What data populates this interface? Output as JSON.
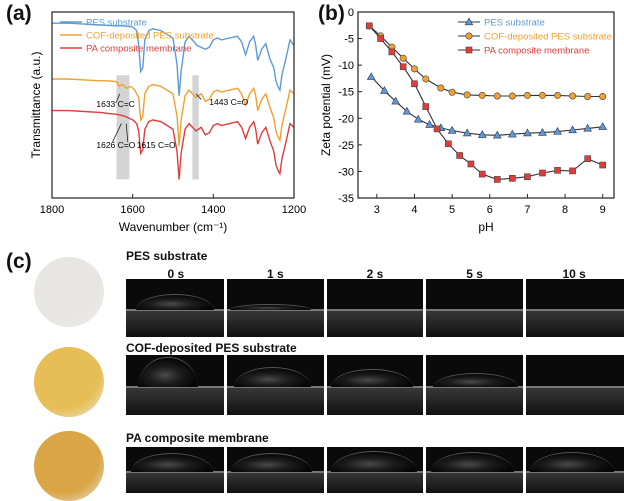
{
  "panels": {
    "a": "(a)",
    "b": "(b)",
    "c": "(c)"
  },
  "chart_data": [
    {
      "type": "line",
      "panel": "(a)",
      "xlabel": "Wavenumber (cm⁻¹)",
      "ylabel": "Transmittance (a.u.)",
      "xlim": [
        1800,
        1200
      ],
      "x_reversed": true,
      "xticks": [
        1800,
        1600,
        1400,
        1200
      ],
      "legend_position": "top-left",
      "series": [
        {
          "name": "PES substrate",
          "color": "#5b9bd5",
          "x": [
            1800,
            1760,
            1720,
            1680,
            1640,
            1620,
            1600,
            1590,
            1585,
            1580,
            1575,
            1570,
            1560,
            1550,
            1530,
            1500,
            1490,
            1485,
            1480,
            1470,
            1460,
            1440,
            1420,
            1410,
            1400,
            1390,
            1380,
            1360,
            1340,
            1330,
            1320,
            1310,
            1300,
            1295,
            1290,
            1280,
            1270,
            1260,
            1250,
            1245,
            1240,
            1235,
            1230,
            1220,
            1210,
            1200
          ],
          "y": [
            0.94,
            0.94,
            0.935,
            0.93,
            0.925,
            0.925,
            0.92,
            0.9,
            0.82,
            0.68,
            0.7,
            0.85,
            0.9,
            0.91,
            0.9,
            0.86,
            0.72,
            0.55,
            0.68,
            0.84,
            0.87,
            0.82,
            0.8,
            0.81,
            0.85,
            0.86,
            0.85,
            0.86,
            0.87,
            0.84,
            0.77,
            0.84,
            0.87,
            0.82,
            0.74,
            0.8,
            0.83,
            0.75,
            0.7,
            0.63,
            0.6,
            0.58,
            0.66,
            0.75,
            0.85,
            0.82
          ]
        },
        {
          "name": "COF-deposited PES substrate",
          "color": "#f0a030",
          "x": [
            1800,
            1760,
            1720,
            1680,
            1660,
            1640,
            1633,
            1626,
            1620,
            1615,
            1605,
            1595,
            1585,
            1580,
            1575,
            1570,
            1560,
            1550,
            1530,
            1500,
            1490,
            1485,
            1480,
            1470,
            1460,
            1443,
            1430,
            1420,
            1410,
            1400,
            1390,
            1380,
            1360,
            1340,
            1330,
            1320,
            1310,
            1300,
            1295,
            1290,
            1280,
            1270,
            1260,
            1250,
            1245,
            1240,
            1235,
            1230,
            1220,
            1210,
            1200
          ],
          "y": [
            0.64,
            0.64,
            0.635,
            0.63,
            0.63,
            0.625,
            0.6,
            0.61,
            0.6,
            0.59,
            0.6,
            0.58,
            0.54,
            0.42,
            0.44,
            0.56,
            0.6,
            0.61,
            0.6,
            0.56,
            0.44,
            0.28,
            0.42,
            0.55,
            0.58,
            0.54,
            0.56,
            0.52,
            0.53,
            0.57,
            0.58,
            0.57,
            0.58,
            0.59,
            0.56,
            0.5,
            0.56,
            0.59,
            0.55,
            0.47,
            0.53,
            0.56,
            0.49,
            0.43,
            0.36,
            0.33,
            0.31,
            0.39,
            0.48,
            0.58,
            0.56
          ]
        },
        {
          "name": "PA composite membrane",
          "color": "#e03c3c",
          "x": [
            1800,
            1760,
            1720,
            1680,
            1660,
            1640,
            1630,
            1620,
            1610,
            1600,
            1590,
            1585,
            1580,
            1575,
            1570,
            1560,
            1550,
            1530,
            1500,
            1490,
            1485,
            1480,
            1470,
            1460,
            1443,
            1430,
            1420,
            1410,
            1400,
            1390,
            1380,
            1360,
            1340,
            1330,
            1320,
            1310,
            1300,
            1295,
            1290,
            1280,
            1270,
            1260,
            1250,
            1245,
            1240,
            1235,
            1230,
            1220,
            1210,
            1200
          ],
          "y": [
            0.47,
            0.47,
            0.465,
            0.46,
            0.455,
            0.45,
            0.445,
            0.44,
            0.43,
            0.42,
            0.4,
            0.36,
            0.24,
            0.26,
            0.37,
            0.41,
            0.42,
            0.41,
            0.37,
            0.25,
            0.1,
            0.24,
            0.37,
            0.4,
            0.36,
            0.38,
            0.34,
            0.35,
            0.39,
            0.4,
            0.39,
            0.4,
            0.41,
            0.38,
            0.32,
            0.38,
            0.41,
            0.37,
            0.29,
            0.35,
            0.38,
            0.31,
            0.25,
            0.18,
            0.15,
            0.13,
            0.21,
            0.3,
            0.4,
            0.38
          ]
        }
      ],
      "highlight_bands": [
        {
          "x_from": 1640,
          "x_to": 1608
        },
        {
          "x_from": 1452,
          "x_to": 1436
        }
      ],
      "annotations": [
        {
          "text": "1633 C=C",
          "x": 1690,
          "y": 0.49
        },
        {
          "text": "1626 C=O",
          "x": 1690,
          "y": 0.27
        },
        {
          "text": "1615 C=O",
          "x": 1590,
          "y": 0.27
        },
        {
          "text": "1443 C=O",
          "x": 1410,
          "y": 0.5
        }
      ]
    },
    {
      "type": "line",
      "panel": "(b)",
      "xlabel": "pH",
      "ylabel": "Zeta potential (mV)",
      "xlim": [
        2.5,
        9.3
      ],
      "ylim": [
        -35,
        0
      ],
      "xticks": [
        3,
        4,
        5,
        6,
        7,
        8,
        9
      ],
      "yticks": [
        0,
        -5,
        -10,
        -15,
        -20,
        -25,
        -30,
        -35
      ],
      "legend_position": "top-right",
      "series": [
        {
          "name": "PES substrate",
          "color": "#5b9bd5",
          "marker": "triangle",
          "x": [
            2.85,
            3.2,
            3.5,
            3.8,
            4.1,
            4.4,
            4.7,
            5.0,
            5.4,
            5.8,
            6.2,
            6.6,
            7.0,
            7.4,
            7.8,
            8.2,
            8.6,
            9.0
          ],
          "y": [
            -12.2,
            -14.8,
            -16.8,
            -18.7,
            -20.2,
            -21.2,
            -21.8,
            -22.3,
            -22.8,
            -23.1,
            -23.2,
            -23.0,
            -22.8,
            -22.7,
            -22.5,
            -22.2,
            -21.9,
            -21.6
          ]
        },
        {
          "name": "COF-deposited PES substrate",
          "color": "#f0a030",
          "marker": "circle",
          "x": [
            2.8,
            3.1,
            3.4,
            3.7,
            4.0,
            4.3,
            4.7,
            5.0,
            5.4,
            5.8,
            6.2,
            6.6,
            7.0,
            7.4,
            7.8,
            8.2,
            8.6,
            9.0
          ],
          "y": [
            -2.6,
            -4.5,
            -6.6,
            -8.7,
            -10.7,
            -12.6,
            -14.3,
            -15.1,
            -15.6,
            -15.7,
            -15.8,
            -15.8,
            -15.7,
            -15.7,
            -15.7,
            -15.8,
            -15.9,
            -15.9
          ]
        },
        {
          "name": "PA composite membrane",
          "color": "#e03c3c",
          "marker": "square",
          "x": [
            2.8,
            3.1,
            3.4,
            3.7,
            4.0,
            4.3,
            4.6,
            4.9,
            5.2,
            5.5,
            5.8,
            6.2,
            6.6,
            7.0,
            7.4,
            7.8,
            8.2,
            8.6,
            9.0
          ],
          "y": [
            -2.6,
            -5.0,
            -7.5,
            -10.3,
            -13.5,
            -17.8,
            -22.0,
            -24.8,
            -27.0,
            -28.6,
            -30.5,
            -31.5,
            -31.3,
            -31.0,
            -30.3,
            -29.8,
            -29.9,
            -27.6,
            -28.8
          ]
        }
      ]
    }
  ],
  "contact_angle": {
    "time_labels": [
      "0 s",
      "1 s",
      "2 s",
      "5 s",
      "10 s"
    ],
    "rows": [
      {
        "title": "PES substrate",
        "disc_color": "#e8e6e2",
        "drops": [
          {
            "w": 0.78,
            "h": 0.5,
            "dx": 0.1
          },
          {
            "w": 0.82,
            "h": 0.18,
            "dx": 0.04
          },
          {
            "w": 0,
            "h": 0
          },
          {
            "w": 0,
            "h": 0
          },
          {
            "w": 0,
            "h": 0
          }
        ]
      },
      {
        "title": "COF-deposited PES substrate",
        "disc_color": "#e7bd55",
        "drops": [
          {
            "w": 0.6,
            "h": 0.95,
            "dx": 0.12
          },
          {
            "w": 0.78,
            "h": 0.6,
            "dx": 0.08
          },
          {
            "w": 0.82,
            "h": 0.55,
            "dx": 0.06
          },
          {
            "w": 0.86,
            "h": 0.42,
            "dx": 0.08
          },
          {
            "w": 0,
            "h": 0
          }
        ]
      },
      {
        "title": "PA composite membrane",
        "disc_color": "#daa544",
        "drops": [
          {
            "w": 0.82,
            "h": 0.75,
            "dx": 0.05
          },
          {
            "w": 0.82,
            "h": 0.75,
            "dx": 0.05
          },
          {
            "w": 0.86,
            "h": 0.82,
            "dx": 0.06
          },
          {
            "w": 0.84,
            "h": 0.78,
            "dx": 0.06
          },
          {
            "w": 0.84,
            "h": 0.78,
            "dx": 0.06
          }
        ]
      }
    ]
  }
}
